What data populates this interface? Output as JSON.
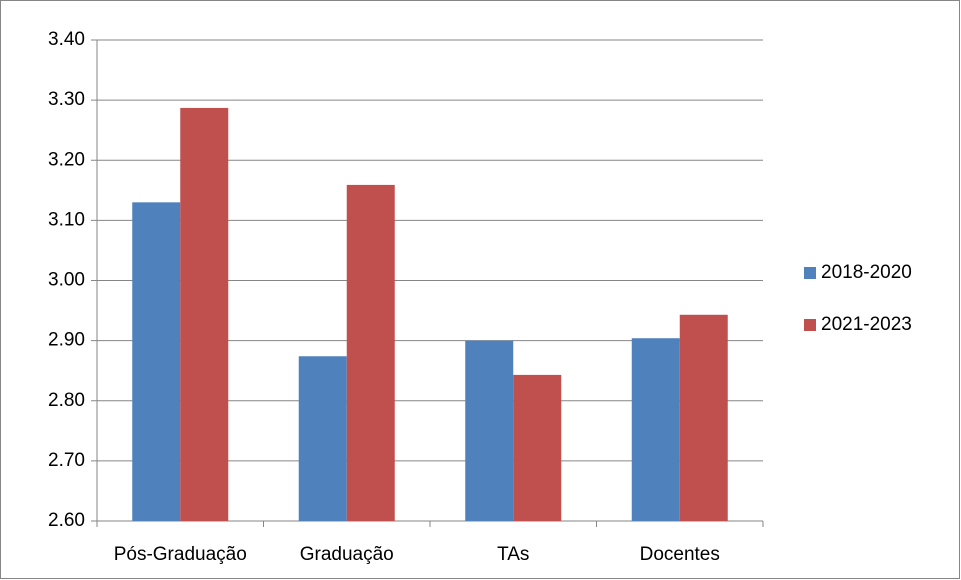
{
  "chart_data": {
    "type": "bar",
    "categories": [
      "Pós-Graduação",
      "Graduação",
      "TAs",
      "Docentes"
    ],
    "series": [
      {
        "name": "2018-2020",
        "color": "#4f81bd",
        "values": [
          3.13,
          2.874,
          2.9,
          2.904
        ]
      },
      {
        "name": "2021-2023",
        "color": "#c0504d",
        "values": [
          3.287,
          3.159,
          2.843,
          2.943
        ]
      }
    ],
    "ylim": [
      2.6,
      3.4
    ],
    "yticks": [
      {
        "value": 2.6,
        "label": "2.60"
      },
      {
        "value": 2.7,
        "label": "2.70"
      },
      {
        "value": 2.8,
        "label": "2.80"
      },
      {
        "value": 2.9,
        "label": "2.90"
      },
      {
        "value": 3.0,
        "label": "3.00"
      },
      {
        "value": 3.1,
        "label": "3.10"
      },
      {
        "value": 3.2,
        "label": "3.20"
      },
      {
        "value": 3.3,
        "label": "3.30"
      },
      {
        "value": 3.4,
        "label": "3.40"
      }
    ],
    "grid": true,
    "legend": "right"
  }
}
